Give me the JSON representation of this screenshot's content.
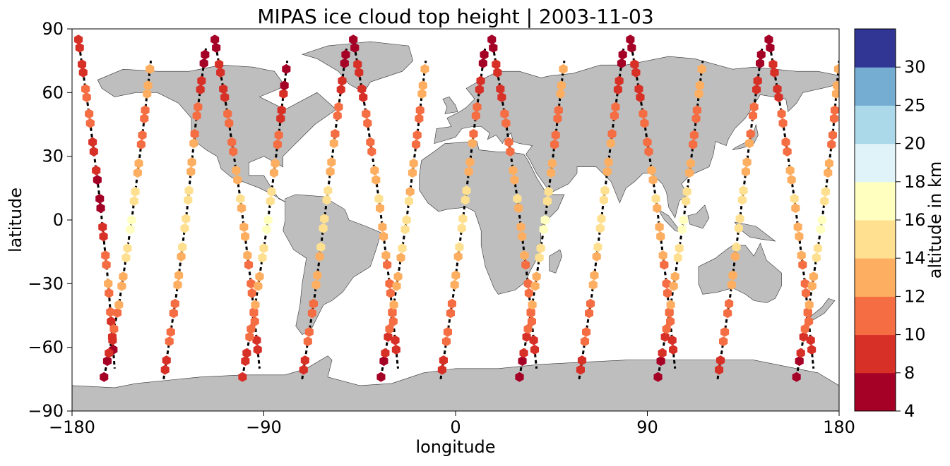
{
  "chart_data": {
    "type": "scatter",
    "title": "MIPAS ice cloud top height | 2003-11-03",
    "xlabel": "longitude",
    "ylabel": "latitude",
    "xlim": [
      -180,
      180
    ],
    "ylim": [
      -90,
      90
    ],
    "xticks": [
      -180,
      -90,
      0,
      90,
      180
    ],
    "yticks": [
      90,
      60,
      30,
      0,
      -30,
      -60,
      -90
    ],
    "xtick_labels": [
      "−180",
      "−90",
      "0",
      "90",
      "180"
    ],
    "ytick_labels": [
      "90",
      "60",
      "30",
      "0",
      "−30",
      "−60",
      "−90"
    ],
    "marker": "hexagon",
    "land_color": "#bebebe",
    "orbit_track_color": "#000000",
    "colorbar": {
      "label": "altitude in km",
      "boundaries": [
        4,
        8,
        10,
        12,
        14,
        16,
        18,
        20,
        25,
        30
      ],
      "tick_labels": [
        "4",
        "8",
        "10",
        "12",
        "14",
        "16",
        "18",
        "20",
        "25",
        "30"
      ],
      "colors": [
        "#a50026",
        "#d73027",
        "#f46d43",
        "#fdae61",
        "#fee090",
        "#ffffbf",
        "#e0f3f8",
        "#abd9e9",
        "#74add1",
        "#313695"
      ]
    },
    "tracks": [
      {
        "lon": [
          -177,
          -172,
          -167,
          -163,
          -160
        ],
        "lat": [
          85,
          50,
          10,
          -30,
          -70
        ],
        "alt": [
          9,
          11,
          7,
          12,
          6
        ]
      },
      {
        "lon": [
          -165,
          -158,
          -152,
          -147,
          -143
        ],
        "lat": [
          -74,
          -40,
          0,
          40,
          75
        ],
        "alt": [
          6,
          12,
          17,
          11,
          13
        ]
      },
      {
        "lon": [
          -137,
          -131,
          -126,
          -122,
          -117
        ],
        "lat": [
          -75,
          -35,
          5,
          45,
          82
        ],
        "alt": [
          9,
          12,
          16,
          11,
          7
        ]
      },
      {
        "lon": [
          -113,
          -107,
          -101,
          -96,
          -92
        ],
        "lat": [
          85,
          50,
          10,
          -30,
          -70
        ],
        "alt": [
          7,
          10,
          14,
          11,
          9
        ]
      },
      {
        "lon": [
          -100,
          -94,
          -88,
          -83,
          -79
        ],
        "lat": [
          -74,
          -40,
          0,
          40,
          75
        ],
        "alt": [
          8,
          12,
          17,
          11,
          6
        ]
      },
      {
        "lon": [
          -72,
          -66,
          -61,
          -56,
          -51
        ],
        "lat": [
          -75,
          -35,
          5,
          45,
          82
        ],
        "alt": [
          9,
          12,
          16,
          11,
          7
        ]
      },
      {
        "lon": [
          -48,
          -42,
          -36,
          -31,
          -27
        ],
        "lat": [
          85,
          50,
          10,
          -30,
          -70
        ],
        "alt": [
          7,
          10,
          14,
          11,
          9
        ]
      },
      {
        "lon": [
          -35,
          -29,
          -23,
          -18,
          -14
        ],
        "lat": [
          -74,
          -40,
          0,
          40,
          75
        ],
        "alt": [
          6,
          12,
          15,
          11,
          13
        ]
      },
      {
        "lon": [
          -7,
          -1,
          4,
          9,
          14
        ],
        "lat": [
          -75,
          -35,
          5,
          45,
          82
        ],
        "alt": [
          9,
          12,
          16,
          11,
          7
        ]
      },
      {
        "lon": [
          17,
          23,
          29,
          34,
          38
        ],
        "lat": [
          85,
          50,
          10,
          -30,
          -70
        ],
        "alt": [
          7,
          10,
          14,
          11,
          9
        ]
      },
      {
        "lon": [
          30,
          36,
          42,
          47,
          51
        ],
        "lat": [
          -74,
          -40,
          0,
          40,
          75
        ],
        "alt": [
          6,
          12,
          17,
          11,
          13
        ]
      },
      {
        "lon": [
          58,
          64,
          69,
          74,
          79
        ],
        "lat": [
          -75,
          -35,
          5,
          45,
          82
        ],
        "alt": [
          9,
          12,
          16,
          11,
          7
        ]
      },
      {
        "lon": [
          82,
          88,
          94,
          99,
          103
        ],
        "lat": [
          85,
          50,
          10,
          -30,
          -70
        ],
        "alt": [
          7,
          10,
          14,
          11,
          9
        ]
      },
      {
        "lon": [
          95,
          101,
          107,
          112,
          116
        ],
        "lat": [
          -74,
          -40,
          0,
          40,
          75
        ],
        "alt": [
          6,
          12,
          17,
          11,
          13
        ]
      },
      {
        "lon": [
          123,
          129,
          134,
          139,
          144
        ],
        "lat": [
          -75,
          -35,
          5,
          45,
          82
        ],
        "alt": [
          9,
          12,
          16,
          11,
          7
        ]
      },
      {
        "lon": [
          147,
          153,
          159,
          164,
          168
        ],
        "lat": [
          85,
          50,
          10,
          -30,
          -70
        ],
        "alt": [
          7,
          10,
          14,
          11,
          9
        ]
      },
      {
        "lon": [
          160,
          166,
          172,
          177,
          180
        ],
        "lat": [
          -74,
          -40,
          0,
          40,
          75
        ],
        "alt": [
          6,
          12,
          17,
          11,
          13
        ]
      }
    ]
  }
}
